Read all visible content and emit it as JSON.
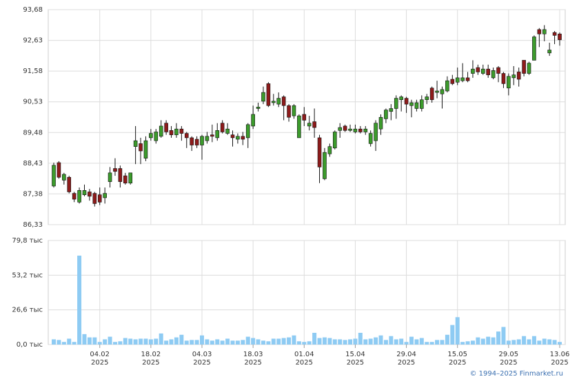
{
  "chart_data": [
    {
      "type": "candlestick",
      "open": [
        87.65,
        88.45,
        87.85,
        87.95,
        87.4,
        87.1,
        87.35,
        87.45,
        87.4,
        87.35,
        87.25,
        87.8,
        88.25,
        88.25,
        88.0,
        87.75,
        89.0,
        89.1,
        88.6,
        89.3,
        89.2,
        89.35,
        89.8,
        89.55,
        89.4,
        89.6,
        89.45,
        89.3,
        89.25,
        89.05,
        89.2,
        89.4,
        89.3,
        89.8,
        89.45,
        89.4,
        89.25,
        89.35,
        89.3,
        89.7,
        90.3,
        90.55,
        91.15,
        90.5,
        90.45,
        90.7,
        90.4,
        90.05,
        89.3,
        90.1,
        89.7,
        89.85,
        89.3,
        87.9,
        88.75,
        88.95,
        89.55,
        89.7,
        89.55,
        89.5,
        89.6,
        89.5,
        89.1,
        89.2,
        89.6,
        89.95,
        90.2,
        90.3,
        90.6,
        90.65,
        90.4,
        90.3,
        90.3,
        90.6,
        91.0,
        90.85,
        90.8,
        90.9,
        91.3,
        91.2,
        91.25,
        91.35,
        91.5,
        91.7,
        91.5,
        91.65,
        91.35,
        91.7,
        91.5,
        91.0,
        91.35,
        91.55,
        91.95,
        91.5,
        91.95,
        93.0,
        92.85,
        92.2,
        92.9,
        92.85
      ],
      "high": [
        88.45,
        88.5,
        88.1,
        88.0,
        87.45,
        87.6,
        87.7,
        87.55,
        87.45,
        87.6,
        87.6,
        88.3,
        88.6,
        88.35,
        88.1,
        88.1,
        89.7,
        89.3,
        89.35,
        89.6,
        89.6,
        89.9,
        89.9,
        89.7,
        89.8,
        89.7,
        89.5,
        89.35,
        89.35,
        89.4,
        89.5,
        89.75,
        89.8,
        89.9,
        89.8,
        89.55,
        89.45,
        89.5,
        89.8,
        90.4,
        90.5,
        91.05,
        91.2,
        90.8,
        90.85,
        90.75,
        90.45,
        90.45,
        90.1,
        90.35,
        90.05,
        90.3,
        89.4,
        88.95,
        89.1,
        89.55,
        89.8,
        89.75,
        89.75,
        89.75,
        89.7,
        89.7,
        89.55,
        89.9,
        90.1,
        90.3,
        90.45,
        90.75,
        90.75,
        90.7,
        90.6,
        90.6,
        90.75,
        90.8,
        91.05,
        91.25,
        91.05,
        91.4,
        91.45,
        91.7,
        91.85,
        91.55,
        91.95,
        91.8,
        91.8,
        91.8,
        91.7,
        91.75,
        91.55,
        91.5,
        91.75,
        91.7,
        91.95,
        91.9,
        92.8,
        93.05,
        93.15,
        92.55,
        92.95,
        92.9
      ],
      "low": [
        87.6,
        87.9,
        87.7,
        87.4,
        87.1,
        87.05,
        87.3,
        87.15,
        86.95,
        87.0,
        87.05,
        87.6,
        88.0,
        87.6,
        87.7,
        87.7,
        88.4,
        88.4,
        88.5,
        89.2,
        89.1,
        89.3,
        89.4,
        89.3,
        89.3,
        89.2,
        88.95,
        88.85,
        88.95,
        88.55,
        89.1,
        89.15,
        89.2,
        89.45,
        89.4,
        89.0,
        89.1,
        89.05,
        88.95,
        89.6,
        90.2,
        90.45,
        90.35,
        90.4,
        90.35,
        89.9,
        89.85,
        89.95,
        89.3,
        89.7,
        89.55,
        89.3,
        87.75,
        87.85,
        88.65,
        88.9,
        89.3,
        89.5,
        89.5,
        89.45,
        89.45,
        89.4,
        89.0,
        88.85,
        89.4,
        89.8,
        89.9,
        89.95,
        90.2,
        90.15,
        90.0,
        90.2,
        90.2,
        90.45,
        90.5,
        90.65,
        90.3,
        90.85,
        91.1,
        91.1,
        91.2,
        91.2,
        91.35,
        91.45,
        91.45,
        91.35,
        91.3,
        91.2,
        91.0,
        90.75,
        91.1,
        91.05,
        91.4,
        91.45,
        91.95,
        92.4,
        92.6,
        92.1,
        92.5,
        92.45
      ],
      "close": [
        88.36,
        87.95,
        88.05,
        87.45,
        87.2,
        87.5,
        87.5,
        87.3,
        87.05,
        87.1,
        87.4,
        88.1,
        88.15,
        87.8,
        87.75,
        88.1,
        89.2,
        88.85,
        89.2,
        89.45,
        89.5,
        89.7,
        89.5,
        89.4,
        89.6,
        89.45,
        89.3,
        89.05,
        89.05,
        89.35,
        89.35,
        89.35,
        89.55,
        89.5,
        89.6,
        89.3,
        89.35,
        89.25,
        89.75,
        90.1,
        90.35,
        90.85,
        90.4,
        90.55,
        90.65,
        90.4,
        90.0,
        90.4,
        90.05,
        89.9,
        89.8,
        89.65,
        88.3,
        88.8,
        89.0,
        89.5,
        89.65,
        89.55,
        89.6,
        89.6,
        89.5,
        89.6,
        89.45,
        89.8,
        90.0,
        90.25,
        90.3,
        90.65,
        90.7,
        90.45,
        90.5,
        90.5,
        90.6,
        90.7,
        90.6,
        90.9,
        90.95,
        91.25,
        91.15,
        91.35,
        91.35,
        91.25,
        91.65,
        91.55,
        91.65,
        91.45,
        91.6,
        91.5,
        91.15,
        91.4,
        91.45,
        91.3,
        91.5,
        91.85,
        92.75,
        92.85,
        93.0,
        92.3,
        92.8,
        92.65
      ],
      "up_color": "#3c9b2c",
      "down_color": "#8e1b1b",
      "grid": true,
      "ylim": [
        86.33,
        93.68
      ],
      "yticks": [
        {
          "value": 86.33,
          "label": "86,33"
        },
        {
          "value": 87.38,
          "label": "87,38"
        },
        {
          "value": 88.43,
          "label": "88,43"
        },
        {
          "value": 89.48,
          "label": "89,48"
        },
        {
          "value": 90.53,
          "label": "90,53"
        },
        {
          "value": 91.58,
          "label": "91,58"
        },
        {
          "value": 92.63,
          "label": "92,63"
        },
        {
          "value": 93.68,
          "label": "93,68"
        }
      ]
    },
    {
      "type": "bar",
      "categories": [
        null,
        null,
        null,
        null,
        null,
        null,
        null,
        null,
        null,
        [
          "04.02",
          "2025"
        ],
        null,
        null,
        null,
        null,
        null,
        null,
        null,
        null,
        null,
        [
          "18.02",
          "2025"
        ],
        null,
        null,
        null,
        null,
        null,
        null,
        null,
        null,
        null,
        [
          "04.03",
          "2025"
        ],
        null,
        null,
        null,
        null,
        null,
        null,
        null,
        null,
        null,
        [
          "18.03",
          "2025"
        ],
        null,
        null,
        null,
        null,
        null,
        null,
        null,
        null,
        null,
        [
          "01.04",
          "2025"
        ],
        null,
        null,
        null,
        null,
        null,
        null,
        null,
        null,
        null,
        [
          "15.04",
          "2025"
        ],
        null,
        null,
        null,
        null,
        null,
        null,
        null,
        null,
        null,
        [
          "29.04",
          "2025"
        ],
        null,
        null,
        null,
        null,
        null,
        null,
        null,
        null,
        null,
        [
          "15.05",
          "2025"
        ],
        null,
        null,
        null,
        null,
        null,
        null,
        null,
        null,
        null,
        [
          "29.05",
          "2025"
        ],
        null,
        null,
        null,
        null,
        null,
        null,
        null,
        null,
        null,
        [
          "13.06",
          "2025"
        ]
      ],
      "values": [
        4,
        3.5,
        2,
        4.5,
        2,
        68.2,
        8,
        5.5,
        5.5,
        2,
        4,
        6,
        2,
        2.5,
        5,
        4.5,
        4,
        4.5,
        4.5,
        4,
        4.5,
        8.5,
        3,
        4,
        5.5,
        7.5,
        3,
        3.5,
        3.5,
        7,
        4,
        3,
        4,
        3,
        4.5,
        3,
        3,
        3.5,
        6,
        5,
        4,
        3,
        2.5,
        4.5,
        4.5,
        5,
        5.5,
        7,
        2.5,
        2,
        2.5,
        9,
        5,
        5.5,
        5,
        4,
        4,
        3.5,
        4,
        4.5,
        9,
        4,
        4.5,
        5.5,
        7,
        3.5,
        6.5,
        4,
        4.5,
        2,
        6,
        4,
        5,
        2,
        2,
        3.5,
        3.5,
        7.5,
        15,
        21,
        2,
        2.5,
        3,
        5.5,
        4.5,
        6,
        5.5,
        10,
        13.5,
        3,
        3.5,
        4,
        6.5,
        4,
        6.5,
        3,
        4.5,
        4,
        3.5,
        2
      ],
      "color": "#8ecbf3",
      "grid": true,
      "ylim": [
        0,
        79.8
      ],
      "yticks": [
        {
          "value": 0,
          "label": "0,0 тыс"
        },
        {
          "value": 26.6,
          "label": "26,6 тыс"
        },
        {
          "value": 53.2,
          "label": "53,2 тыс"
        },
        {
          "value": 79.8,
          "label": "79,8 тыс"
        }
      ]
    }
  ],
  "footer": "© 1994–2025 Finmarket.ru"
}
